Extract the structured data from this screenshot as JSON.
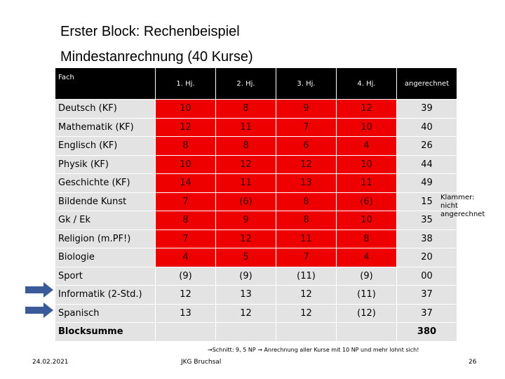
{
  "title_line1": "Erster Block: Rechenbeispiel",
  "title_line2": "Mindestanrechnung (40 Kurse)",
  "table": {
    "headers": [
      "Fach",
      "1. Hj.",
      "2. Hj.",
      "3. Hj.",
      "4. Hj.",
      "angerechnet"
    ],
    "rows": [
      {
        "name": "Deutsch (KF)",
        "values": [
          "10",
          "8",
          "9",
          "12"
        ],
        "counted": "39"
      },
      {
        "name": "Mathematik  (KF)",
        "values": [
          "12",
          "11",
          "7",
          "10"
        ],
        "counted": "40"
      },
      {
        "name": "Englisch (KF)",
        "values": [
          "8",
          "8",
          "6",
          "4"
        ],
        "counted": "26"
      },
      {
        "name": "Physik (KF)",
        "values": [
          "10",
          "12",
          "12",
          "10"
        ],
        "counted": "44"
      },
      {
        "name": "Geschichte  (KF)",
        "values": [
          "14",
          "11",
          "13",
          "11"
        ],
        "counted": "49"
      },
      {
        "name": "Bildende Kunst",
        "values": [
          "7",
          "(6)",
          "8",
          "(6)"
        ],
        "counted": "15"
      },
      {
        "name": "Gk / Ek",
        "values": [
          "8",
          "9",
          "8",
          "10"
        ],
        "counted": "35"
      },
      {
        "name": "Religion (m.PF!)",
        "values": [
          "7",
          "12",
          "11",
          "8"
        ],
        "counted": "38"
      },
      {
        "name": "Biologie",
        "values": [
          "4",
          "5",
          "7",
          "4"
        ],
        "counted": "20"
      },
      {
        "name": "Sport",
        "values": [
          "(9)",
          "(9)",
          "(11)",
          "(9)"
        ],
        "counted": "00"
      },
      {
        "name": "Informatik (2-Std.)",
        "values": [
          "12",
          "13",
          "12",
          "(11)"
        ],
        "counted": "37"
      },
      {
        "name": "Spanisch",
        "values": [
          "13",
          "12",
          "12",
          "(12)"
        ],
        "counted": "37"
      }
    ],
    "sum_label": "Blocksumme",
    "sum_value": "380"
  },
  "red_rows_count": 9,
  "colors": {
    "red": "#ee0000",
    "gray": "#e3e3e3",
    "header": "#000000",
    "arrow": "#3b5a9a"
  },
  "side_note": [
    "Klammer:",
    "nicht",
    "angerechnet"
  ],
  "footnote": "→Schnitt: 9, 5 NP  → Anrechnung aller Kurse mit 10 NP und mehr lohnt sich!",
  "footer": {
    "date": "24.02.2021",
    "center": "JKG Bruchsal",
    "page": "26"
  }
}
